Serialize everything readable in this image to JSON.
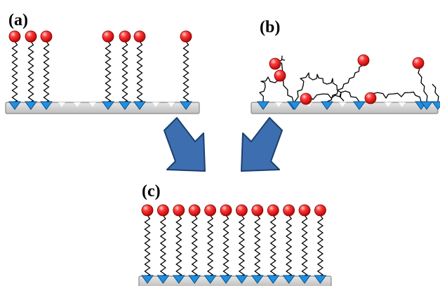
{
  "panels": {
    "a": {
      "label": "(a)"
    },
    "b": {
      "label": "(b)"
    },
    "c": {
      "label": "(c)"
    }
  },
  "colors": {
    "substrate_fill": "#cfcfcf",
    "substrate_stroke": "#8a8a8a",
    "anchor": "#1f8fe0",
    "anchor_stroke": "#0b4f8c",
    "headgroup": "#e01010",
    "headgroup_highlight": "#ffd0d0",
    "chain": "#000000",
    "arrow_fill": "#3d6fb0",
    "arrow_stroke": "#1c3f6e"
  },
  "icons": {
    "arrow_a_to_c": "arrow-down-right-icon",
    "arrow_b_to_c": "arrow-down-left-icon"
  }
}
